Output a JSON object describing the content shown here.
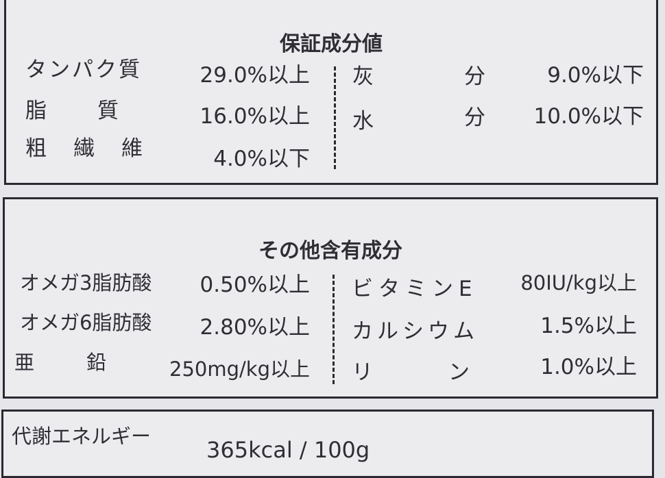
{
  "guaranteed": {
    "title": "保証成分値",
    "left": [
      {
        "label": "タンパク質",
        "value": "29.0%以上"
      },
      {
        "label": "脂　　質",
        "value": "16.0%以上"
      },
      {
        "label": "粗　繊　維",
        "value": "4.0%以下"
      }
    ],
    "right": [
      {
        "label1": "灰",
        "label2": "分",
        "value": "9.0%以下"
      },
      {
        "label1": "水",
        "label2": "分",
        "value": "10.0%以下"
      }
    ]
  },
  "other": {
    "title": "その他含有成分",
    "left": [
      {
        "label": "オメガ3脂肪酸",
        "value": "0.50%以上"
      },
      {
        "label": "オメガ6脂肪酸",
        "value": "2.80%以上"
      },
      {
        "label": "亜　　鉛",
        "value": "250mg/kg以上"
      }
    ],
    "right": [
      {
        "label": "ビタミンE",
        "value": "80IU/kg以上"
      },
      {
        "label": "カルシウム",
        "value": "1.5%以上"
      },
      {
        "label": "リ　　ン",
        "value": "1.0%以上"
      }
    ]
  },
  "energy": {
    "label": "代謝エネルギー",
    "value": "365kcal / 100g"
  }
}
